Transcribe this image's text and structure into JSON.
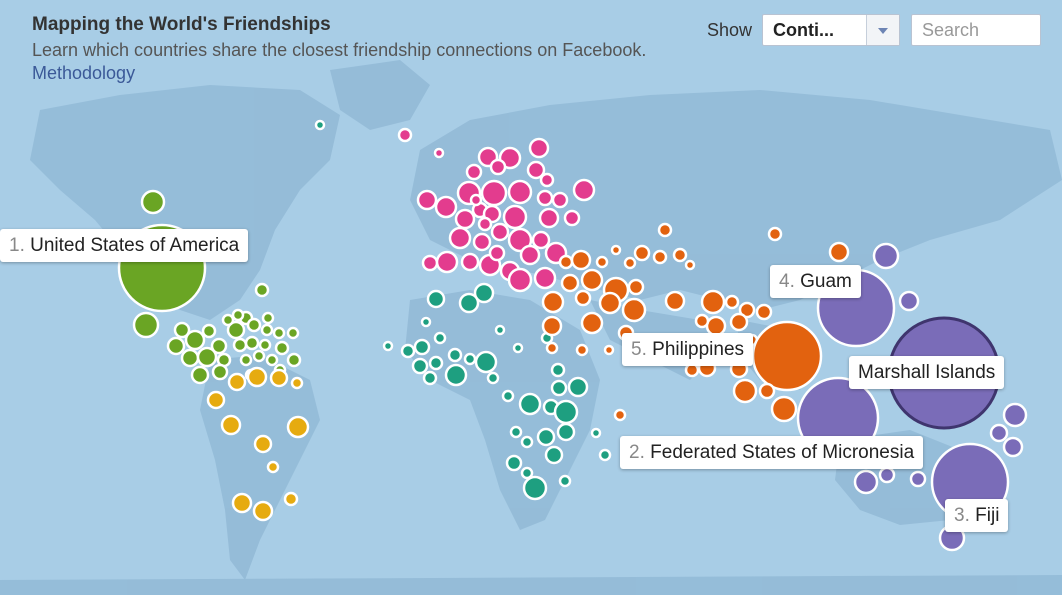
{
  "header": {
    "title": "Mapping the World's Friendships",
    "subtitle": "Learn which countries share the closest friendship connections on Facebook.",
    "methodology_link": "Methodology"
  },
  "controls": {
    "show_label": "Show",
    "selected_option": "Conti...",
    "search_placeholder": "Search"
  },
  "colors": {
    "ocean": "#a8cde6",
    "land": "#8fb7d4",
    "north_america": "#6aa524",
    "south_america": "#e6ab10",
    "europe": "#e33c8e",
    "africa": "#1e9f80",
    "asia": "#e2620f",
    "oceania": "#7a6cb8"
  },
  "labels": [
    {
      "rank": "1.",
      "name": "United States of America"
    },
    {
      "rank": "2.",
      "name": "Federated States of Micronesia"
    },
    {
      "rank": "3.",
      "name": "Fiji"
    },
    {
      "rank": "4.",
      "name": "Guam"
    },
    {
      "rank": "5.",
      "name": "Philippines"
    },
    {
      "rank": "",
      "name": "Marshall Islands"
    }
  ]
}
